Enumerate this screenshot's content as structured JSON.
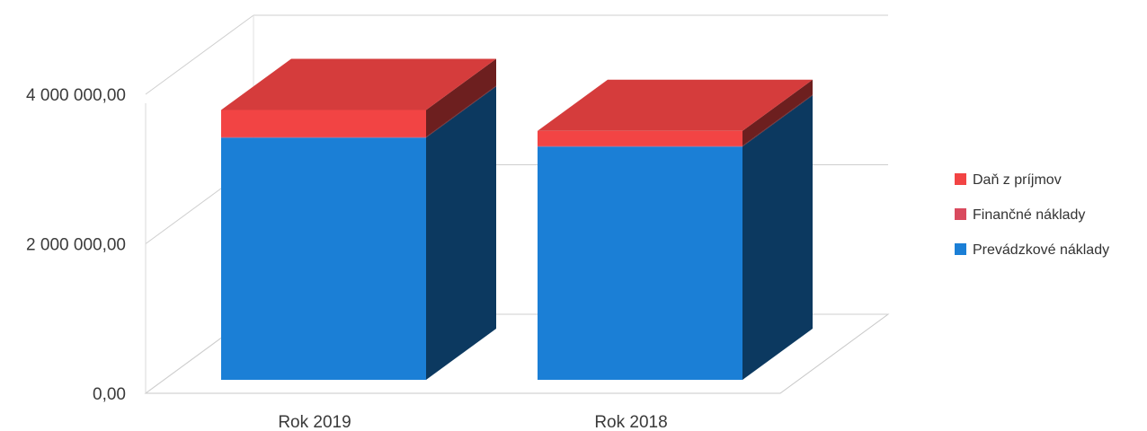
{
  "chart_data": {
    "type": "bar",
    "stacked": true,
    "three_d": true,
    "categories": [
      "Rok 2019",
      "Rok 2018"
    ],
    "series": [
      {
        "name": "Prevádzkové náklady",
        "color": "#1b7fd6",
        "values": [
          3240000,
          3120000
        ]
      },
      {
        "name": "Finančné náklady",
        "color": "#d94a5e",
        "values": [
          10000,
          10000
        ]
      },
      {
        "name": "Daň z príjmov",
        "color": "#f24444",
        "values": [
          360000,
          200000
        ]
      }
    ],
    "y_ticks": [
      "0,00",
      "2 000 000,00",
      "4 000 000,00"
    ],
    "ylim": [
      0,
      4000000
    ],
    "grid": true,
    "legend": "right"
  }
}
